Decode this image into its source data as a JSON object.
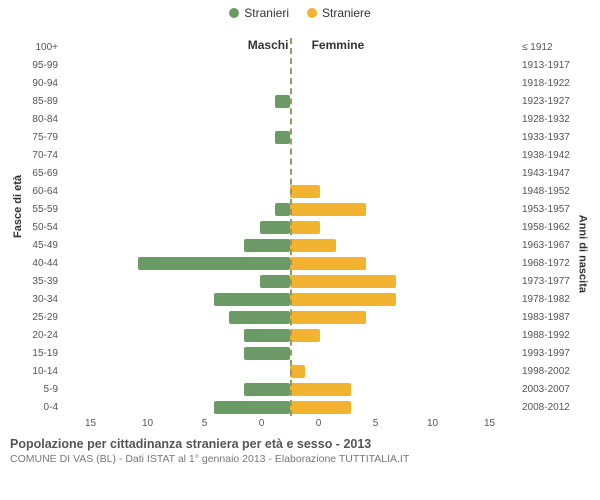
{
  "legend": {
    "male": {
      "label": "Stranieri",
      "color": "#6b9a66"
    },
    "female": {
      "label": "Straniere",
      "color": "#f2b430"
    }
  },
  "column_titles": {
    "left": "Maschi",
    "right": "Femmine"
  },
  "axis_labels": {
    "left": "Fasce di età",
    "right": "Anni di nascita"
  },
  "x_axis": {
    "max": 15,
    "ticks_left": [
      "15",
      "10",
      "5",
      "0"
    ],
    "ticks_right": [
      "0",
      "5",
      "10",
      "15"
    ]
  },
  "colors": {
    "male_bar": "#6b9a66",
    "female_bar": "#f2b430",
    "grid": "#e6e6e6",
    "centerline": "#999966",
    "background": "#ffffff"
  },
  "typography": {
    "tick_fontsize": 10,
    "label_fontsize": 12,
    "title_fontsize": 12.5,
    "subtitle_fontsize": 10.5
  },
  "rows": [
    {
      "age": "100+",
      "birth": "≤ 1912",
      "m": 0,
      "f": 0
    },
    {
      "age": "95-99",
      "birth": "1913-1917",
      "m": 0,
      "f": 0
    },
    {
      "age": "90-94",
      "birth": "1918-1922",
      "m": 0,
      "f": 0
    },
    {
      "age": "85-89",
      "birth": "1923-1927",
      "m": 1,
      "f": 0
    },
    {
      "age": "80-84",
      "birth": "1928-1932",
      "m": 0,
      "f": 0
    },
    {
      "age": "75-79",
      "birth": "1933-1937",
      "m": 1,
      "f": 0
    },
    {
      "age": "70-74",
      "birth": "1938-1942",
      "m": 0,
      "f": 0
    },
    {
      "age": "65-69",
      "birth": "1943-1947",
      "m": 0,
      "f": 0
    },
    {
      "age": "60-64",
      "birth": "1948-1952",
      "m": 0,
      "f": 2
    },
    {
      "age": "55-59",
      "birth": "1953-1957",
      "m": 1,
      "f": 5
    },
    {
      "age": "50-54",
      "birth": "1958-1962",
      "m": 2,
      "f": 2
    },
    {
      "age": "45-49",
      "birth": "1963-1967",
      "m": 3,
      "f": 3
    },
    {
      "age": "40-44",
      "birth": "1968-1972",
      "m": 10,
      "f": 5
    },
    {
      "age": "35-39",
      "birth": "1973-1977",
      "m": 2,
      "f": 7
    },
    {
      "age": "30-34",
      "birth": "1978-1982",
      "m": 5,
      "f": 7
    },
    {
      "age": "25-29",
      "birth": "1983-1987",
      "m": 4,
      "f": 5
    },
    {
      "age": "20-24",
      "birth": "1988-1992",
      "m": 3,
      "f": 2
    },
    {
      "age": "15-19",
      "birth": "1993-1997",
      "m": 3,
      "f": 0
    },
    {
      "age": "10-14",
      "birth": "1998-2002",
      "m": 0,
      "f": 1
    },
    {
      "age": "5-9",
      "birth": "2003-2007",
      "m": 3,
      "f": 4
    },
    {
      "age": "0-4",
      "birth": "2008-2012",
      "m": 5,
      "f": 4
    }
  ],
  "footer": {
    "title": "Popolazione per cittadinanza straniera per età e sesso - 2013",
    "subtitle": "COMUNE DI VAS (BL) - Dati ISTAT al 1° gennaio 2013 - Elaborazione TUTTITALIA.IT"
  }
}
